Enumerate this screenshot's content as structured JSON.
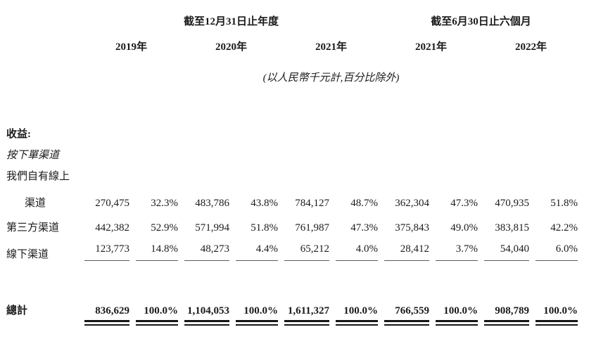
{
  "table": {
    "header": {
      "groups": [
        {
          "label": "截至12月31日止年度"
        },
        {
          "label": "截至6月30日止六個月"
        }
      ],
      "years": [
        "2019年",
        "2020年",
        "2021年",
        "2021年",
        "2022年"
      ]
    },
    "note": "(以人民幣千元計,百分比除外)",
    "sections": {
      "revenue": "收益:",
      "by_channel": "按下單渠道",
      "own_online": "我們自有線上"
    },
    "rows": [
      {
        "label": "渠道",
        "values": [
          "270,475",
          "32.3%",
          "483,786",
          "43.8%",
          "784,127",
          "48.7%",
          "362,304",
          "47.3%",
          "470,935",
          "51.8%"
        ]
      },
      {
        "label": "第三方渠道",
        "values": [
          "442,382",
          "52.9%",
          "571,994",
          "51.8%",
          "761,987",
          "47.3%",
          "375,843",
          "49.0%",
          "383,815",
          "42.2%"
        ]
      },
      {
        "label": "線下渠道",
        "values": [
          "123,773",
          "14.8%",
          "48,273",
          "4.4%",
          "65,212",
          "4.0%",
          "28,412",
          "3.7%",
          "54,040",
          "6.0%"
        ]
      }
    ],
    "total": {
      "label": "總計",
      "values": [
        "836,629",
        "100.0%",
        "1,104,053",
        "100.0%",
        "1,611,327",
        "100.0%",
        "766,559",
        "100.0%",
        "908,789",
        "100.0%"
      ]
    }
  }
}
